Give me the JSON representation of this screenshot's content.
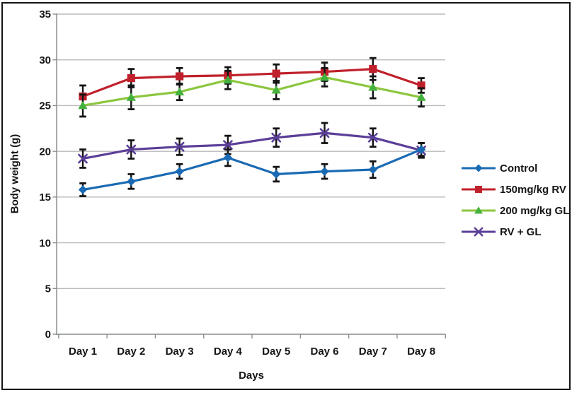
{
  "figure": {
    "background": "#ffffff",
    "border_color": "#141414"
  },
  "chart_data": {
    "type": "line",
    "title": "",
    "xlabel": "Days",
    "ylabel": "Body weight (g)",
    "ylim": [
      0,
      35
    ],
    "ytick_step": 5,
    "grid": "horizontal-gridlines-on",
    "legend_position": "right-outside",
    "categories": [
      "Day 1",
      "Day 2",
      "Day 3",
      "Day 4",
      "Day 5",
      "Day 6",
      "Day 7",
      "Day 8"
    ],
    "series": [
      {
        "name": "Control",
        "marker": "diamond",
        "color": "#1a6ab3",
        "marker_color": "#1a6ab3",
        "values": [
          15.8,
          16.7,
          17.8,
          19.3,
          17.5,
          17.8,
          18.0,
          20.2
        ],
        "errors": [
          0.7,
          0.8,
          0.8,
          0.9,
          0.8,
          0.8,
          0.9,
          0.7
        ]
      },
      {
        "name": "150mg/kg RV",
        "marker": "square",
        "color": "#c0202b",
        "marker_color": "#c0202b",
        "values": [
          26.0,
          28.0,
          28.2,
          28.3,
          28.5,
          28.7,
          29.0,
          27.2
        ],
        "errors": [
          1.2,
          1.0,
          0.9,
          0.9,
          1.0,
          1.0,
          1.2,
          0.8
        ]
      },
      {
        "name": "200 mg/kg GL",
        "marker": "triangle",
        "color": "#8cc63e",
        "marker_color": "#44b13d",
        "values": [
          25.0,
          25.9,
          26.5,
          27.8,
          26.7,
          28.1,
          27.0,
          25.9
        ],
        "errors": [
          1.2,
          1.3,
          0.9,
          1.0,
          1.0,
          1.0,
          1.2,
          1.0
        ]
      },
      {
        "name": "RV + GL",
        "marker": "x",
        "color": "#5b3f98",
        "marker_color": "#5b3f98",
        "values": [
          19.2,
          20.2,
          20.5,
          20.7,
          21.5,
          22.0,
          21.5,
          20.1
        ],
        "errors": [
          1.0,
          1.0,
          0.9,
          1.0,
          1.0,
          1.1,
          1.0,
          0.8
        ]
      }
    ],
    "error_bar_color": "#141414",
    "gridline_color": "#b9babc",
    "axis_color": "#8a8d8f",
    "tick_label_color": "#141414"
  }
}
